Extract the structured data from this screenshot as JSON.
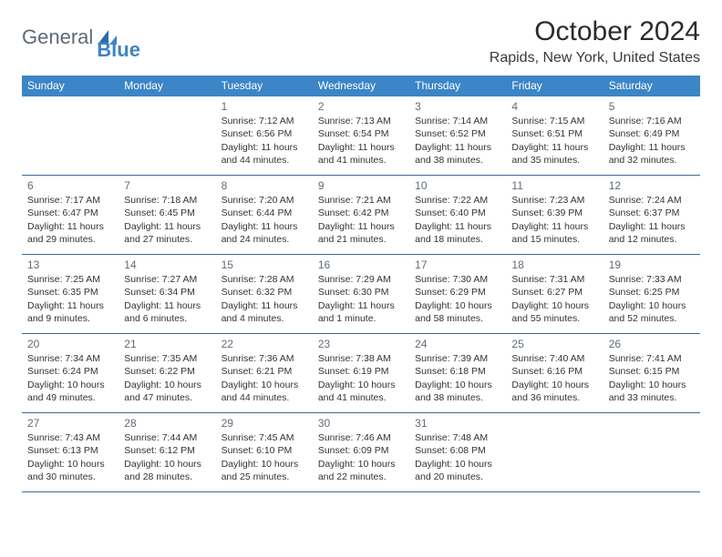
{
  "logo": {
    "text1": "General",
    "text2": "Blue"
  },
  "header": {
    "title": "October 2024",
    "location": "Rapids, New York, United States"
  },
  "colors": {
    "header_bg": "#3c85c6",
    "header_text": "#ffffff",
    "border": "#3c6a9a",
    "daynum": "#606b78",
    "body_text": "#333333"
  },
  "day_names": [
    "Sunday",
    "Monday",
    "Tuesday",
    "Wednesday",
    "Thursday",
    "Friday",
    "Saturday"
  ],
  "weeks": [
    [
      null,
      null,
      {
        "n": "1",
        "sr": "Sunrise: 7:12 AM",
        "ss": "Sunset: 6:56 PM",
        "d1": "Daylight: 11 hours",
        "d2": "and 44 minutes."
      },
      {
        "n": "2",
        "sr": "Sunrise: 7:13 AM",
        "ss": "Sunset: 6:54 PM",
        "d1": "Daylight: 11 hours",
        "d2": "and 41 minutes."
      },
      {
        "n": "3",
        "sr": "Sunrise: 7:14 AM",
        "ss": "Sunset: 6:52 PM",
        "d1": "Daylight: 11 hours",
        "d2": "and 38 minutes."
      },
      {
        "n": "4",
        "sr": "Sunrise: 7:15 AM",
        "ss": "Sunset: 6:51 PM",
        "d1": "Daylight: 11 hours",
        "d2": "and 35 minutes."
      },
      {
        "n": "5",
        "sr": "Sunrise: 7:16 AM",
        "ss": "Sunset: 6:49 PM",
        "d1": "Daylight: 11 hours",
        "d2": "and 32 minutes."
      }
    ],
    [
      {
        "n": "6",
        "sr": "Sunrise: 7:17 AM",
        "ss": "Sunset: 6:47 PM",
        "d1": "Daylight: 11 hours",
        "d2": "and 29 minutes."
      },
      {
        "n": "7",
        "sr": "Sunrise: 7:18 AM",
        "ss": "Sunset: 6:45 PM",
        "d1": "Daylight: 11 hours",
        "d2": "and 27 minutes."
      },
      {
        "n": "8",
        "sr": "Sunrise: 7:20 AM",
        "ss": "Sunset: 6:44 PM",
        "d1": "Daylight: 11 hours",
        "d2": "and 24 minutes."
      },
      {
        "n": "9",
        "sr": "Sunrise: 7:21 AM",
        "ss": "Sunset: 6:42 PM",
        "d1": "Daylight: 11 hours",
        "d2": "and 21 minutes."
      },
      {
        "n": "10",
        "sr": "Sunrise: 7:22 AM",
        "ss": "Sunset: 6:40 PM",
        "d1": "Daylight: 11 hours",
        "d2": "and 18 minutes."
      },
      {
        "n": "11",
        "sr": "Sunrise: 7:23 AM",
        "ss": "Sunset: 6:39 PM",
        "d1": "Daylight: 11 hours",
        "d2": "and 15 minutes."
      },
      {
        "n": "12",
        "sr": "Sunrise: 7:24 AM",
        "ss": "Sunset: 6:37 PM",
        "d1": "Daylight: 11 hours",
        "d2": "and 12 minutes."
      }
    ],
    [
      {
        "n": "13",
        "sr": "Sunrise: 7:25 AM",
        "ss": "Sunset: 6:35 PM",
        "d1": "Daylight: 11 hours",
        "d2": "and 9 minutes."
      },
      {
        "n": "14",
        "sr": "Sunrise: 7:27 AM",
        "ss": "Sunset: 6:34 PM",
        "d1": "Daylight: 11 hours",
        "d2": "and 6 minutes."
      },
      {
        "n": "15",
        "sr": "Sunrise: 7:28 AM",
        "ss": "Sunset: 6:32 PM",
        "d1": "Daylight: 11 hours",
        "d2": "and 4 minutes."
      },
      {
        "n": "16",
        "sr": "Sunrise: 7:29 AM",
        "ss": "Sunset: 6:30 PM",
        "d1": "Daylight: 11 hours",
        "d2": "and 1 minute."
      },
      {
        "n": "17",
        "sr": "Sunrise: 7:30 AM",
        "ss": "Sunset: 6:29 PM",
        "d1": "Daylight: 10 hours",
        "d2": "and 58 minutes."
      },
      {
        "n": "18",
        "sr": "Sunrise: 7:31 AM",
        "ss": "Sunset: 6:27 PM",
        "d1": "Daylight: 10 hours",
        "d2": "and 55 minutes."
      },
      {
        "n": "19",
        "sr": "Sunrise: 7:33 AM",
        "ss": "Sunset: 6:25 PM",
        "d1": "Daylight: 10 hours",
        "d2": "and 52 minutes."
      }
    ],
    [
      {
        "n": "20",
        "sr": "Sunrise: 7:34 AM",
        "ss": "Sunset: 6:24 PM",
        "d1": "Daylight: 10 hours",
        "d2": "and 49 minutes."
      },
      {
        "n": "21",
        "sr": "Sunrise: 7:35 AM",
        "ss": "Sunset: 6:22 PM",
        "d1": "Daylight: 10 hours",
        "d2": "and 47 minutes."
      },
      {
        "n": "22",
        "sr": "Sunrise: 7:36 AM",
        "ss": "Sunset: 6:21 PM",
        "d1": "Daylight: 10 hours",
        "d2": "and 44 minutes."
      },
      {
        "n": "23",
        "sr": "Sunrise: 7:38 AM",
        "ss": "Sunset: 6:19 PM",
        "d1": "Daylight: 10 hours",
        "d2": "and 41 minutes."
      },
      {
        "n": "24",
        "sr": "Sunrise: 7:39 AM",
        "ss": "Sunset: 6:18 PM",
        "d1": "Daylight: 10 hours",
        "d2": "and 38 minutes."
      },
      {
        "n": "25",
        "sr": "Sunrise: 7:40 AM",
        "ss": "Sunset: 6:16 PM",
        "d1": "Daylight: 10 hours",
        "d2": "and 36 minutes."
      },
      {
        "n": "26",
        "sr": "Sunrise: 7:41 AM",
        "ss": "Sunset: 6:15 PM",
        "d1": "Daylight: 10 hours",
        "d2": "and 33 minutes."
      }
    ],
    [
      {
        "n": "27",
        "sr": "Sunrise: 7:43 AM",
        "ss": "Sunset: 6:13 PM",
        "d1": "Daylight: 10 hours",
        "d2": "and 30 minutes."
      },
      {
        "n": "28",
        "sr": "Sunrise: 7:44 AM",
        "ss": "Sunset: 6:12 PM",
        "d1": "Daylight: 10 hours",
        "d2": "and 28 minutes."
      },
      {
        "n": "29",
        "sr": "Sunrise: 7:45 AM",
        "ss": "Sunset: 6:10 PM",
        "d1": "Daylight: 10 hours",
        "d2": "and 25 minutes."
      },
      {
        "n": "30",
        "sr": "Sunrise: 7:46 AM",
        "ss": "Sunset: 6:09 PM",
        "d1": "Daylight: 10 hours",
        "d2": "and 22 minutes."
      },
      {
        "n": "31",
        "sr": "Sunrise: 7:48 AM",
        "ss": "Sunset: 6:08 PM",
        "d1": "Daylight: 10 hours",
        "d2": "and 20 minutes."
      },
      null,
      null
    ]
  ]
}
